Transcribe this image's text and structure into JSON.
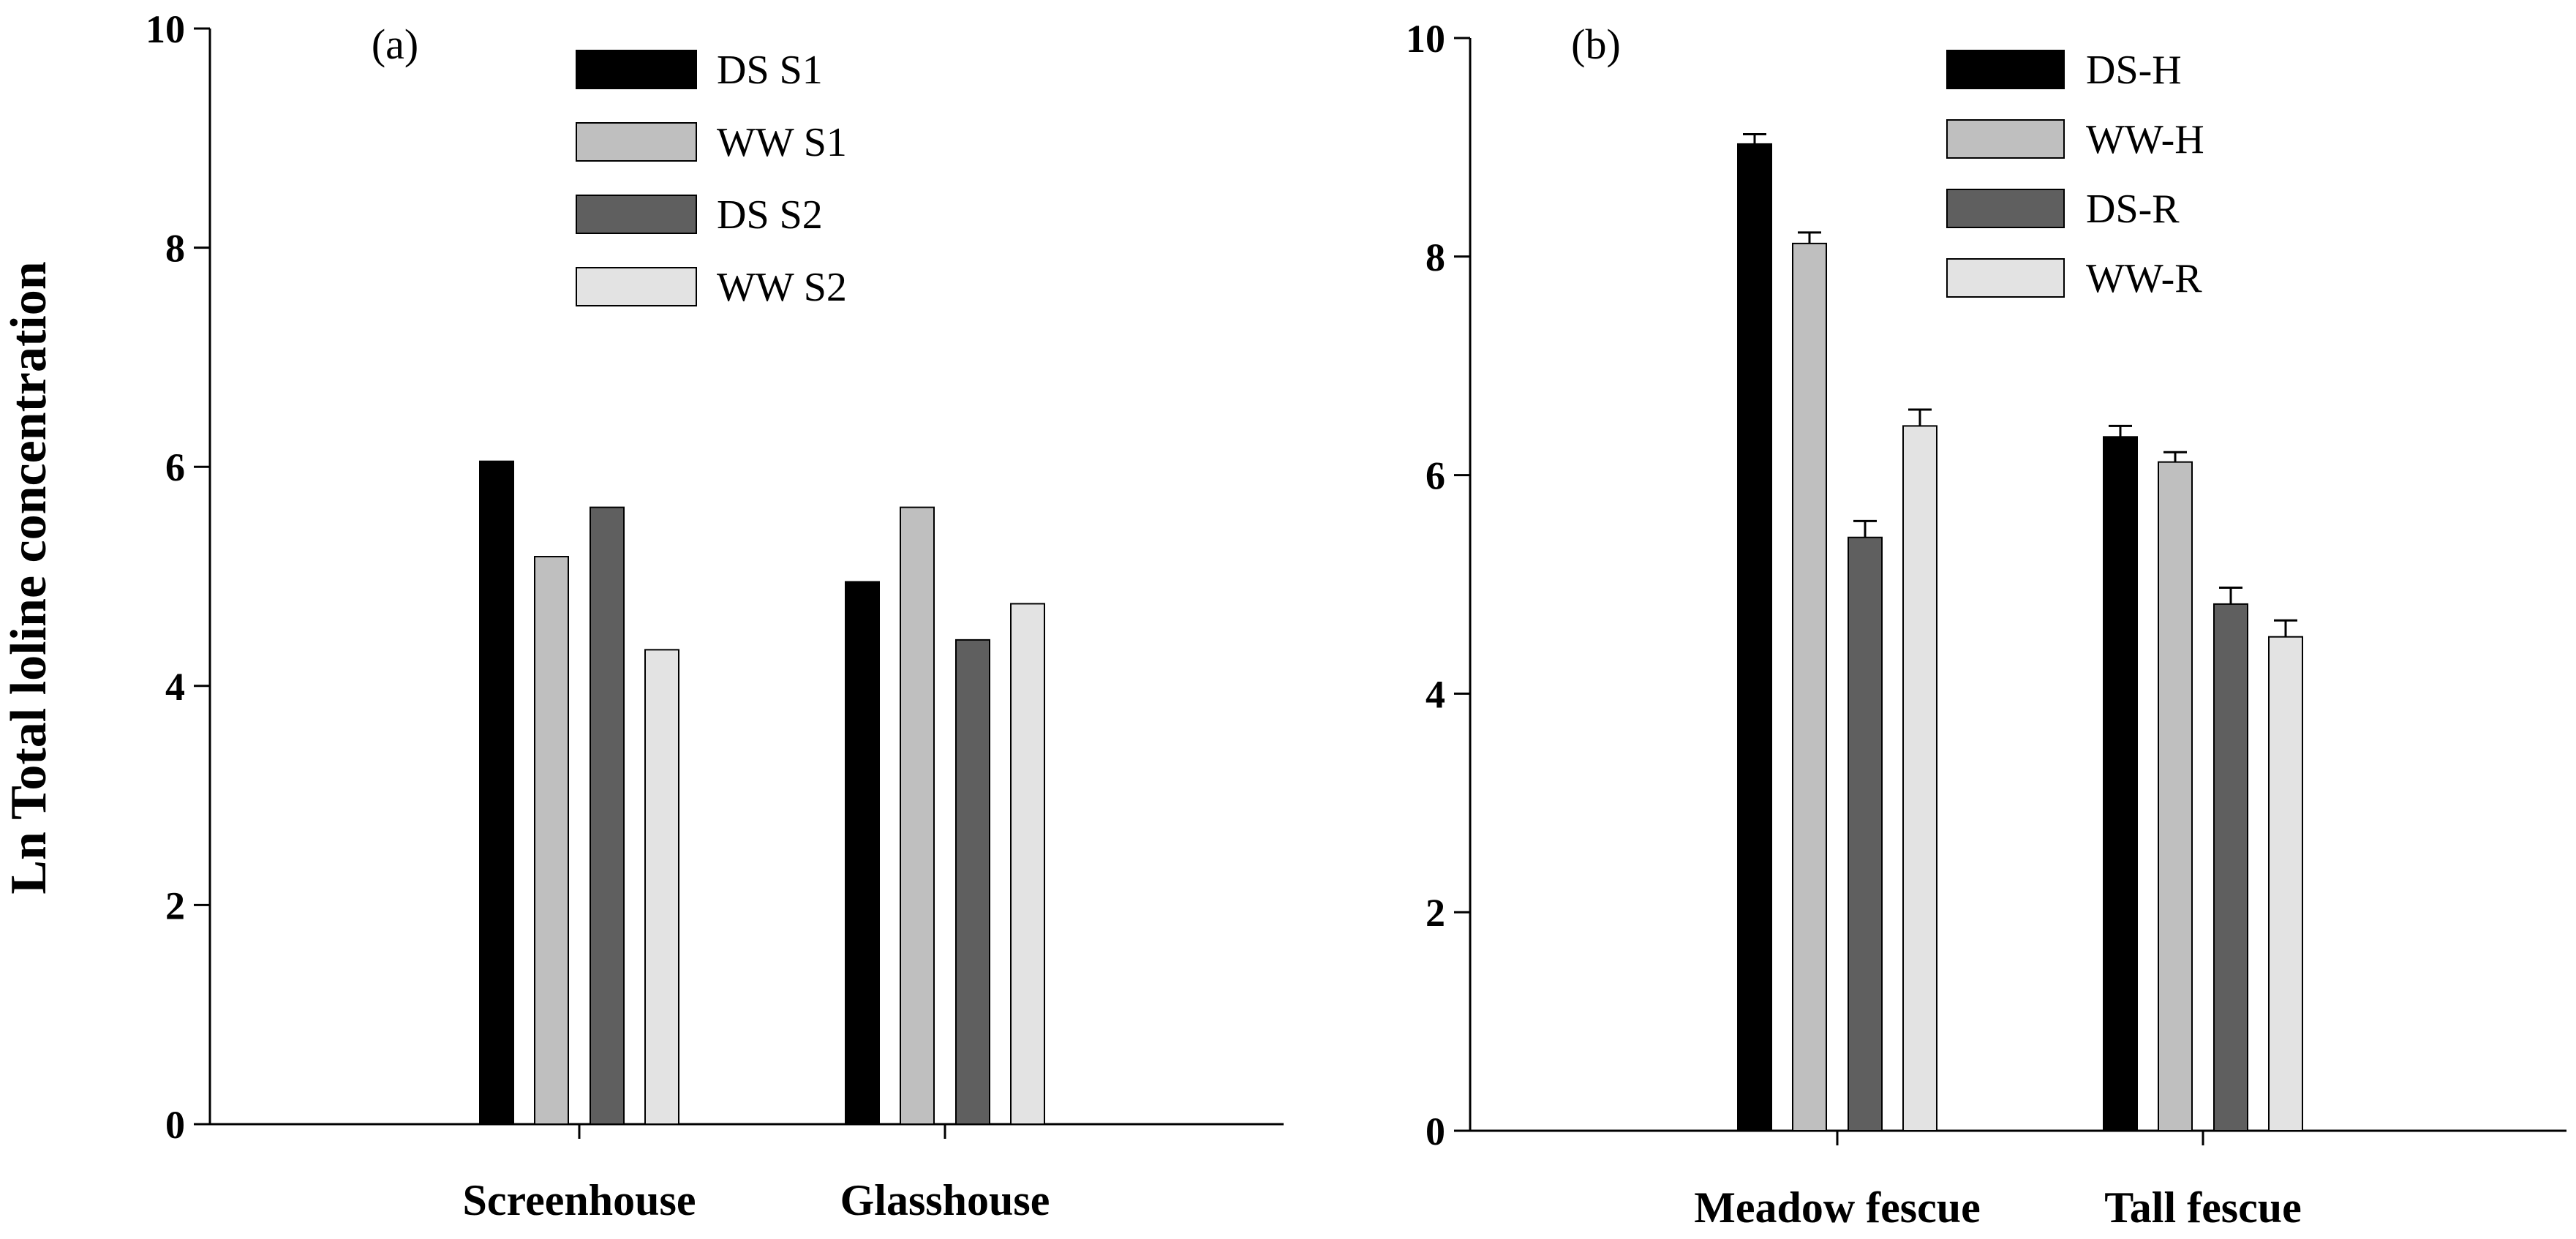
{
  "chart_data": [
    {
      "type": "bar",
      "panel_label": "(a)",
      "categories": [
        "Screenhouse",
        "Glasshouse"
      ],
      "series": [
        {
          "name": "DS S1",
          "color": "#000000",
          "values": [
            6.05,
            4.95
          ]
        },
        {
          "name": "WW S1",
          "color": "#bfbfbf",
          "values": [
            5.18,
            5.63
          ]
        },
        {
          "name": "DS S2",
          "color": "#5f5f5f",
          "values": [
            5.63,
            4.42
          ]
        },
        {
          "name": "WW S2",
          "color": "#e3e3e3",
          "values": [
            4.33,
            4.75
          ]
        }
      ],
      "ylabel": "Ln Total loline concentration",
      "ylim": [
        0,
        10
      ],
      "yticks": [
        "0",
        "2",
        "4",
        "6",
        "8",
        "10"
      ],
      "legend": "top-center"
    },
    {
      "type": "bar",
      "panel_label": "(b)",
      "categories": [
        "Meadow fescue",
        "Tall fescue"
      ],
      "series": [
        {
          "name": "DS-H",
          "color": "#000000",
          "values": [
            9.03,
            6.35
          ],
          "errors": [
            0.09,
            0.1
          ]
        },
        {
          "name": "WW-H",
          "color": "#bfbfbf",
          "values": [
            8.12,
            6.12
          ],
          "errors": [
            0.1,
            0.09
          ]
        },
        {
          "name": "DS-R",
          "color": "#5f5f5f",
          "values": [
            5.43,
            4.82
          ],
          "errors": [
            0.15,
            0.15
          ]
        },
        {
          "name": "WW-R",
          "color": "#e3e3e3",
          "values": [
            6.45,
            4.52
          ],
          "errors": [
            0.15,
            0.15
          ]
        }
      ],
      "ylabel": "",
      "ylim": [
        0,
        10
      ],
      "yticks": [
        "0",
        "2",
        "4",
        "6",
        "8",
        "10"
      ],
      "legend": "top-center"
    }
  ]
}
